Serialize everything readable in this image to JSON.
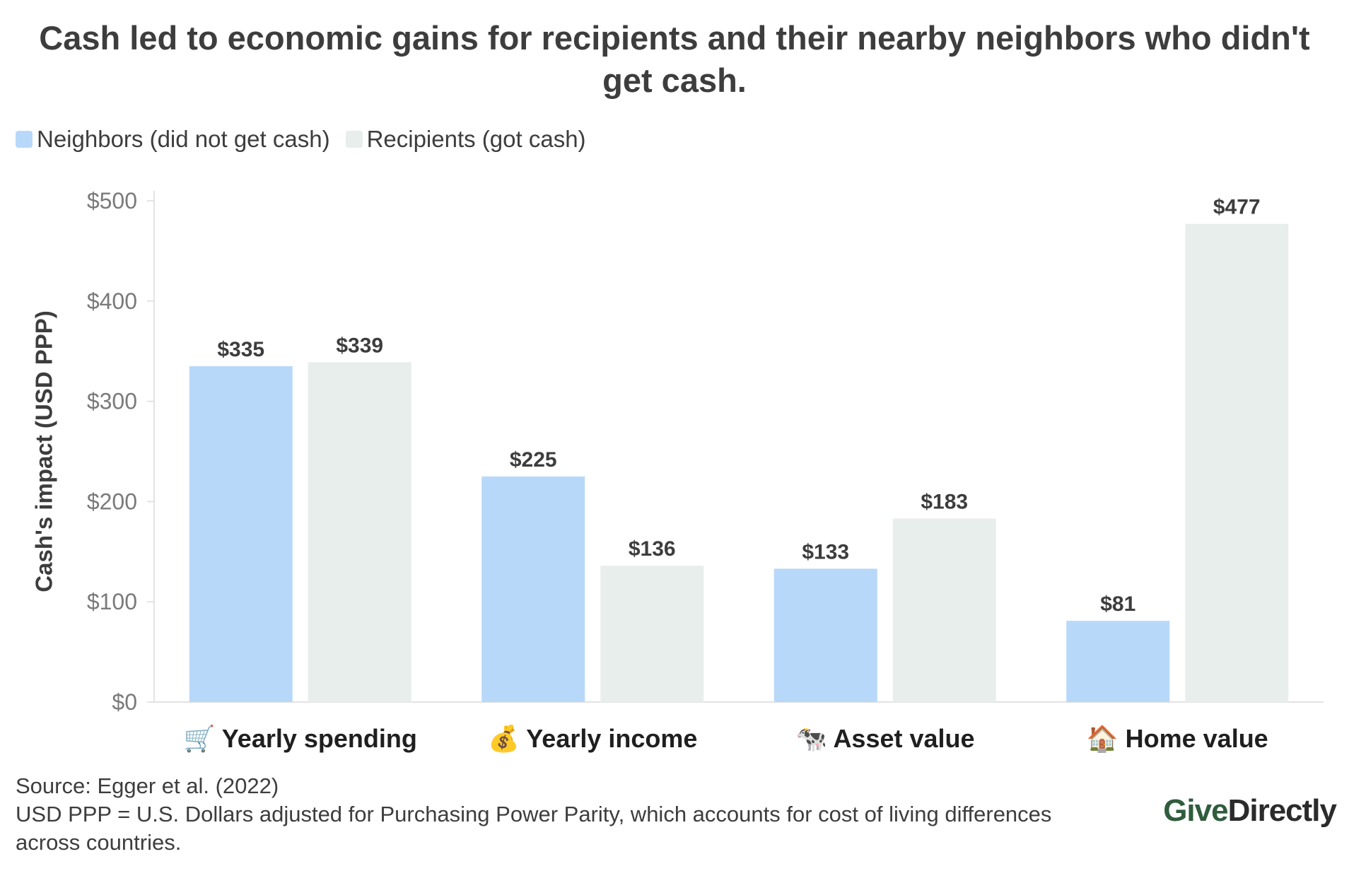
{
  "chart_data": {
    "type": "bar",
    "title": "Cash led to economic gains for recipients and their nearby neighbors who didn't get cash.",
    "ylabel": "Cash's impact (USD PPP)",
    "xlabel": "",
    "ylim": [
      0,
      500
    ],
    "yticks": [
      0,
      100,
      200,
      300,
      400,
      500
    ],
    "ytick_labels": [
      "$0",
      "$100",
      "$200",
      "$300",
      "$400",
      "$500"
    ],
    "categories": [
      {
        "icon": "🛒",
        "label": "Yearly spending"
      },
      {
        "icon": "💰",
        "label": "Yearly income"
      },
      {
        "icon": "🐄",
        "label": "Asset value"
      },
      {
        "icon": "🏠",
        "label": "Home value"
      }
    ],
    "series": [
      {
        "name": "Neighbors (did not get cash)",
        "color": "#b8d8f9",
        "values": [
          335,
          225,
          133,
          81
        ],
        "value_labels": [
          "$335",
          "$225",
          "$133",
          "$81"
        ]
      },
      {
        "name": "Recipients (got cash)",
        "color": "#e8eeeb",
        "values": [
          339,
          136,
          183,
          477
        ],
        "value_labels": [
          "$339",
          "$136",
          "$183",
          "$477"
        ]
      }
    ],
    "legend_position": "top-left",
    "grid": false
  },
  "footer": {
    "source": "Source: Egger et al. (2022)",
    "note": "USD PPP = U.S. Dollars adjusted for Purchasing Power Parity, which accounts for cost of living differences across countries."
  },
  "logo": {
    "part1": "Give",
    "part2": "Directly"
  }
}
